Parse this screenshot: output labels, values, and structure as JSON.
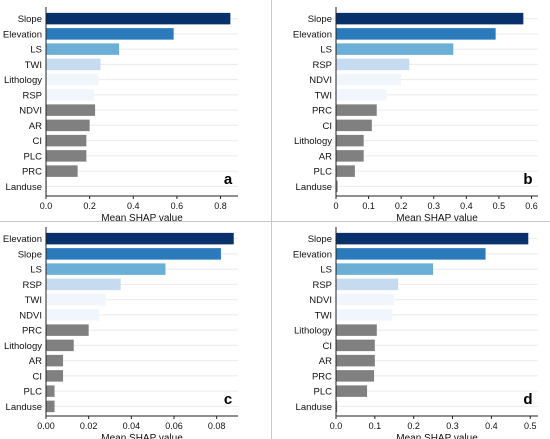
{
  "chart_data": [
    {
      "type": "bar",
      "panel_label": "a",
      "xlabel": "Mean SHAP value",
      "xlim": [
        0,
        0.88
      ],
      "xticks": [
        "0.0",
        "0.2",
        "0.4",
        "0.6",
        "0.8"
      ],
      "categories": [
        "Slope",
        "Elevation",
        "LS",
        "TWI",
        "Lithology",
        "RSP",
        "NDVI",
        "AR",
        "CI",
        "PLC",
        "PRC",
        "Landuse"
      ],
      "values": [
        0.845,
        0.585,
        0.335,
        0.25,
        0.24,
        0.22,
        0.225,
        0.2,
        0.185,
        0.185,
        0.145,
        0.003
      ]
    },
    {
      "type": "bar",
      "panel_label": "b",
      "xlabel": "Mean SHAP value",
      "xlim": [
        0,
        0.62
      ],
      "xticks": [
        "0",
        "0.1",
        "0.2",
        "0.3",
        "0.4",
        "0.5",
        "0.6"
      ],
      "categories": [
        "Slope",
        "Elevation",
        "LS",
        "RSP",
        "NDVI",
        "TWI",
        "PRC",
        "CI",
        "Lithology",
        "AR",
        "PLC",
        "Landuse"
      ],
      "values": [
        0.575,
        0.49,
        0.36,
        0.225,
        0.2,
        0.155,
        0.125,
        0.11,
        0.085,
        0.085,
        0.058,
        0.005
      ]
    },
    {
      "type": "bar",
      "panel_label": "c",
      "xlabel": "Mean SHAP value",
      "xlim": [
        0,
        0.09
      ],
      "xticks": [
        "0.00",
        "0.02",
        "0.04",
        "0.06",
        "0.08"
      ],
      "categories": [
        "Elevation",
        "Slope",
        "LS",
        "RSP",
        "TWI",
        "NDVI",
        "PRC",
        "Lithology",
        "AR",
        "CI",
        "PLC",
        "Landuse"
      ],
      "values": [
        0.088,
        0.082,
        0.056,
        0.035,
        0.028,
        0.025,
        0.02,
        0.013,
        0.008,
        0.008,
        0.004,
        0.004
      ]
    },
    {
      "type": "bar",
      "panel_label": "d",
      "xlabel": "Mean SHAP value",
      "xlim": [
        0,
        0.52
      ],
      "xticks": [
        "0.0",
        "0.1",
        "0.2",
        "0.3",
        "0.4",
        "0.5"
      ],
      "categories": [
        "Slope",
        "Elevation",
        "LS",
        "RSP",
        "NDVI",
        "TWI",
        "Lithology",
        "CI",
        "AR",
        "PRC",
        "PLC",
        "Landuse"
      ],
      "values": [
        0.495,
        0.385,
        0.25,
        0.16,
        0.15,
        0.145,
        0.105,
        0.1,
        0.1,
        0.098,
        0.08,
        0.003
      ]
    }
  ],
  "colors": {
    "rank1": "#08306b",
    "rank2": "#2a7abc",
    "rank3": "#6baed6",
    "rank4": "#c6dbef",
    "rank5": "#f1f6fc",
    "rank6": "#f1f6fc",
    "gray": "#808080",
    "grid": "#ebebeb",
    "axis": "#222222"
  }
}
